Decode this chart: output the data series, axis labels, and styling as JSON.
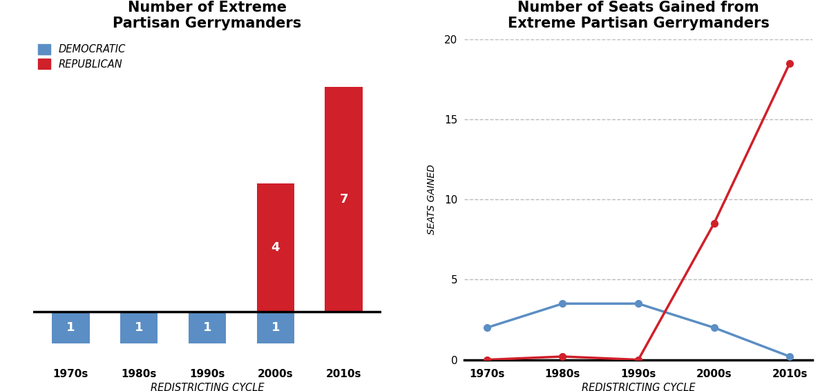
{
  "left_title": "Number of Extreme\nPartisan Gerrymanders",
  "right_title": "Number of Seats Gained from\nExtreme Partisan Gerrymanders",
  "categories": [
    "1970s",
    "1980s",
    "1990s",
    "2000s",
    "2010s"
  ],
  "dem_color": "#5b8ec4",
  "rep_color": "#d0202a",
  "bar_width": 0.55,
  "dem_bar_height": 1,
  "rep_bar_2000": 4,
  "rep_bar_2010": 7,
  "xlabel": "REDISTRICTING CYCLE",
  "ylabel_right": "SEATS GAINED",
  "legend_dem": "DEMOCRATIC",
  "legend_rep": "REPUBLICAN",
  "background_color": "#ffffff",
  "dem_line_y": [
    2.0,
    3.5,
    3.5,
    2.0,
    0.2
  ],
  "rep_line_y": [
    0.0,
    0.2,
    0.0,
    8.5,
    18.5
  ],
  "line_x": [
    0,
    1,
    2,
    3,
    4
  ],
  "yticks_right": [
    0,
    5,
    10,
    15,
    20
  ],
  "ylim_right": [
    0,
    20
  ]
}
